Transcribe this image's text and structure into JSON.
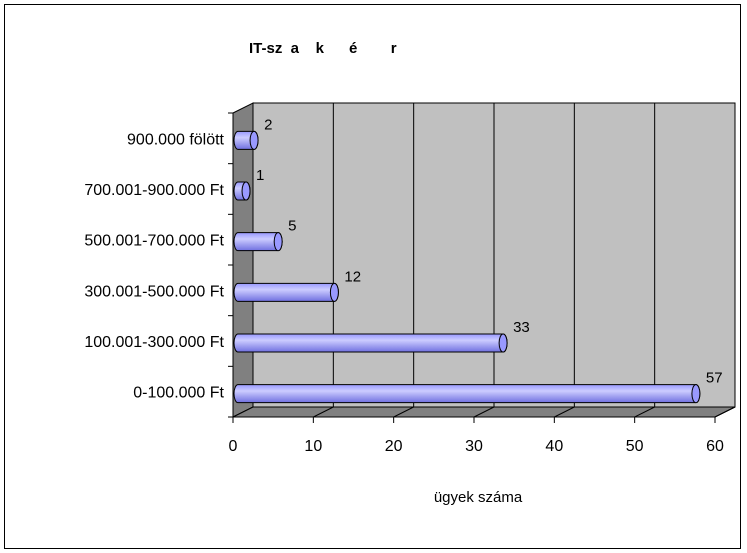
{
  "chart_data": {
    "type": "bar",
    "orientation": "horizontal",
    "style": "3d-cylinder",
    "title": "IT-sz  a    k      é        r",
    "xlabel": "ügyek száma",
    "ylabel": "",
    "categories": [
      "0-100.000 Ft",
      "100.001-300.000 Ft",
      "300.001-500.000 Ft",
      "500.001-700.000 Ft",
      "700.001-900.000 Ft",
      "900.000 fölött"
    ],
    "values": [
      57,
      33,
      12,
      5,
      1,
      2
    ],
    "xlim": [
      0,
      60
    ],
    "xticks": [
      0,
      10,
      20,
      30,
      40,
      50,
      60
    ],
    "grid": true,
    "legend": "none",
    "colors": {
      "bar_fill": "#9999ff",
      "bar_fill_light": "#ccccff",
      "bar_stroke": "#000000",
      "plot_wall": "#c0c0c0",
      "plot_floor": "#808080",
      "gridline": "#000000"
    }
  }
}
